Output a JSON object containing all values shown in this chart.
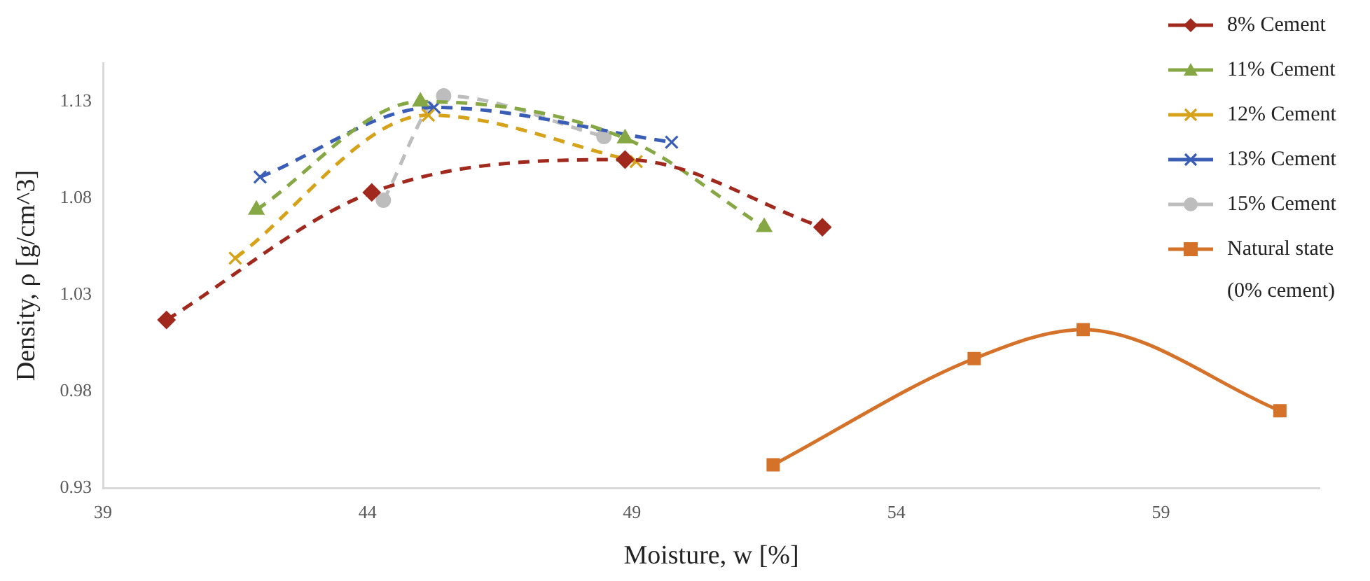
{
  "chart_data": {
    "type": "line",
    "xlabel": "Moisture, w [%]",
    "ylabel": "Density, ρ [g/cm^3]",
    "xlim": [
      39,
      62
    ],
    "xticks": [
      39,
      44,
      49,
      54,
      59
    ],
    "ylim": [
      0.93,
      1.15
    ],
    "yticks": [
      0.93,
      0.98,
      1.03,
      1.08,
      1.13
    ],
    "grid": false,
    "legend": "top right",
    "series": [
      {
        "name": "8% Cement",
        "color": "#a0281c",
        "marker": "diamond",
        "line_style": "dashed",
        "x": [
          40.2,
          44.08,
          48.87,
          52.6
        ],
        "values": [
          1.017,
          1.083,
          1.1,
          1.065
        ]
      },
      {
        "name": "11% Cement",
        "color": "#86a844",
        "marker": "triangle",
        "line_style": "dashed",
        "x": [
          41.9,
          45.0,
          48.87,
          51.5
        ],
        "values": [
          1.074,
          1.13,
          1.111,
          1.065
        ]
      },
      {
        "name": "12% Cement",
        "color": "#d6a21a",
        "marker": "cross",
        "line_style": "dashed",
        "x": [
          41.5,
          45.15,
          49.08
        ],
        "values": [
          1.049,
          1.123,
          1.099
        ]
      },
      {
        "name": "13% Cement",
        "color": "#3a5eb5",
        "marker": "cross",
        "line_style": "dashed",
        "x": [
          41.97,
          45.26,
          49.75
        ],
        "values": [
          1.091,
          1.127,
          1.109
        ]
      },
      {
        "name": "15% Cement",
        "color": "#bdbdbd",
        "marker": "circle",
        "line_style": "dashed",
        "x": [
          44.3,
          45.44,
          48.47
        ],
        "values": [
          1.079,
          1.133,
          1.112
        ]
      },
      {
        "name": "Natural state (0% cement)",
        "color": "#d5722a",
        "marker": "square",
        "line_style": "solid",
        "x": [
          51.67,
          55.47,
          57.53,
          61.25
        ],
        "values": [
          0.942,
          0.997,
          1.012,
          0.97
        ]
      }
    ]
  }
}
